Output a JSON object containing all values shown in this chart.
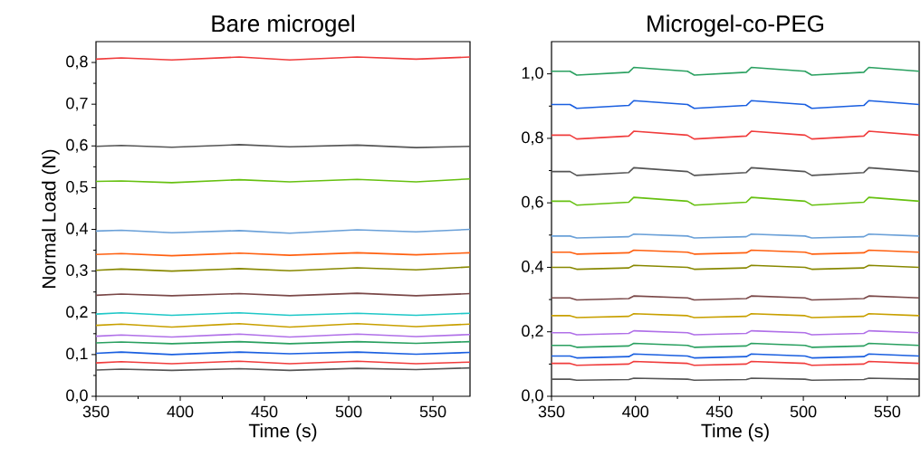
{
  "chart_data": [
    {
      "type": "line",
      "title": "Bare microgel",
      "xlabel": "Time (s)",
      "ylabel": "Normal Load (N)",
      "xlim": [
        350,
        572
      ],
      "ylim": [
        0,
        0.85
      ],
      "xticks": [
        350,
        400,
        450,
        500,
        550
      ],
      "yticks": [
        {
          "value": 0,
          "label": "0,0"
        },
        {
          "value": 0.1,
          "label": "0,1"
        },
        {
          "value": 0.2,
          "label": "0,2"
        },
        {
          "value": 0.3,
          "label": "0,3"
        },
        {
          "value": 0.4,
          "label": "0,4"
        },
        {
          "value": 0.5,
          "label": "0,5"
        },
        {
          "value": 0.6,
          "label": "0,6"
        },
        {
          "value": 0.7,
          "label": "0,7"
        },
        {
          "value": 0.8,
          "label": "0,8"
        }
      ],
      "series": [
        {
          "color": "#555555",
          "x": [
            350,
            365,
            395,
            435,
            465,
            505,
            540,
            572
          ],
          "values": [
            0.063,
            0.065,
            0.062,
            0.066,
            0.062,
            0.067,
            0.064,
            0.068
          ]
        },
        {
          "color": "#f03c3c",
          "x": [
            350,
            365,
            395,
            435,
            465,
            505,
            540,
            572
          ],
          "values": [
            0.08,
            0.083,
            0.078,
            0.084,
            0.078,
            0.084,
            0.078,
            0.082
          ]
        },
        {
          "color": "#1a5fe0",
          "x": [
            350,
            365,
            395,
            435,
            465,
            505,
            540,
            572
          ],
          "values": [
            0.103,
            0.106,
            0.1,
            0.106,
            0.102,
            0.106,
            0.101,
            0.105
          ]
        },
        {
          "color": "#2aa060",
          "x": [
            350,
            365,
            395,
            435,
            465,
            505,
            540,
            572
          ],
          "values": [
            0.128,
            0.13,
            0.126,
            0.131,
            0.126,
            0.131,
            0.127,
            0.131
          ]
        },
        {
          "color": "#b070e8",
          "x": [
            350,
            365,
            395,
            435,
            465,
            505,
            540,
            572
          ],
          "values": [
            0.144,
            0.147,
            0.142,
            0.149,
            0.142,
            0.149,
            0.143,
            0.148
          ]
        },
        {
          "color": "#c8a000",
          "x": [
            350,
            365,
            395,
            435,
            465,
            505,
            540,
            572
          ],
          "values": [
            0.17,
            0.173,
            0.166,
            0.174,
            0.166,
            0.174,
            0.167,
            0.173
          ]
        },
        {
          "color": "#20c8c8",
          "x": [
            350,
            365,
            395,
            435,
            465,
            505,
            540,
            572
          ],
          "values": [
            0.197,
            0.2,
            0.194,
            0.2,
            0.194,
            0.199,
            0.194,
            0.199
          ]
        },
        {
          "color": "#7a4848",
          "x": [
            350,
            365,
            395,
            435,
            465,
            505,
            540,
            572
          ],
          "values": [
            0.242,
            0.245,
            0.241,
            0.246,
            0.241,
            0.247,
            0.241,
            0.246
          ]
        },
        {
          "color": "#888800",
          "x": [
            350,
            365,
            395,
            435,
            465,
            505,
            540,
            572
          ],
          "values": [
            0.302,
            0.305,
            0.3,
            0.306,
            0.301,
            0.308,
            0.303,
            0.31
          ]
        },
        {
          "color": "#ff6010",
          "x": [
            350,
            365,
            395,
            435,
            465,
            505,
            540,
            572
          ],
          "values": [
            0.34,
            0.342,
            0.337,
            0.343,
            0.338,
            0.344,
            0.339,
            0.344
          ]
        },
        {
          "color": "#6aa0d8",
          "x": [
            350,
            365,
            395,
            435,
            465,
            505,
            540,
            572
          ],
          "values": [
            0.396,
            0.398,
            0.392,
            0.397,
            0.391,
            0.399,
            0.394,
            0.4
          ]
        },
        {
          "color": "#66c010",
          "x": [
            350,
            365,
            395,
            435,
            465,
            505,
            540,
            572
          ],
          "values": [
            0.515,
            0.516,
            0.512,
            0.519,
            0.514,
            0.52,
            0.514,
            0.521
          ]
        },
        {
          "color": "#555555",
          "x": [
            350,
            365,
            395,
            435,
            465,
            505,
            540,
            572
          ],
          "values": [
            0.599,
            0.601,
            0.597,
            0.603,
            0.598,
            0.602,
            0.596,
            0.599
          ]
        },
        {
          "color": "#f03c3c",
          "x": [
            350,
            365,
            395,
            435,
            465,
            505,
            540,
            572
          ],
          "values": [
            0.808,
            0.811,
            0.806,
            0.813,
            0.806,
            0.813,
            0.808,
            0.813
          ]
        }
      ]
    },
    {
      "type": "line",
      "title": "Microgel-co-PEG",
      "xlabel": "Time (s)",
      "xlim": [
        350,
        569
      ],
      "ylim": [
        0,
        1.1
      ],
      "xticks": [
        350,
        400,
        450,
        500,
        550
      ],
      "yticks": [
        {
          "value": 0,
          "label": "0,0"
        },
        {
          "value": 0.2,
          "label": "0,2"
        },
        {
          "value": 0.4,
          "label": "0,4"
        },
        {
          "value": 0.6,
          "label": "0,6"
        },
        {
          "value": 0.8,
          "label": "0,8"
        },
        {
          "value": 1.0,
          "label": "1,0"
        }
      ],
      "series": [
        {
          "color": "#555555",
          "x": [
            350,
            361,
            365,
            396,
            399,
            431,
            435,
            466,
            469,
            501,
            505,
            536,
            539,
            569
          ],
          "values": [
            0.053,
            0.053,
            0.05,
            0.052,
            0.056,
            0.053,
            0.05,
            0.052,
            0.056,
            0.053,
            0.05,
            0.052,
            0.056,
            0.053
          ]
        },
        {
          "color": "#f03c3c",
          "x": [
            350,
            361,
            365,
            396,
            399,
            431,
            435,
            466,
            469,
            501,
            505,
            536,
            539,
            569
          ],
          "values": [
            0.102,
            0.102,
            0.096,
            0.1,
            0.108,
            0.102,
            0.096,
            0.1,
            0.108,
            0.102,
            0.096,
            0.1,
            0.108,
            0.102
          ]
        },
        {
          "color": "#1a5fe0",
          "x": [
            350,
            361,
            365,
            396,
            399,
            431,
            435,
            466,
            469,
            501,
            505,
            536,
            539,
            569
          ],
          "values": [
            0.125,
            0.125,
            0.119,
            0.123,
            0.131,
            0.125,
            0.119,
            0.123,
            0.131,
            0.125,
            0.119,
            0.123,
            0.131,
            0.125
          ]
        },
        {
          "color": "#2aa060",
          "x": [
            350,
            361,
            365,
            396,
            399,
            431,
            435,
            466,
            469,
            501,
            505,
            536,
            539,
            569
          ],
          "values": [
            0.158,
            0.158,
            0.152,
            0.156,
            0.164,
            0.158,
            0.152,
            0.156,
            0.164,
            0.158,
            0.152,
            0.156,
            0.164,
            0.158
          ]
        },
        {
          "color": "#b070e8",
          "x": [
            350,
            361,
            365,
            396,
            399,
            431,
            435,
            466,
            469,
            501,
            505,
            536,
            539,
            569
          ],
          "values": [
            0.197,
            0.197,
            0.191,
            0.195,
            0.203,
            0.197,
            0.191,
            0.195,
            0.203,
            0.197,
            0.191,
            0.195,
            0.203,
            0.197
          ]
        },
        {
          "color": "#c8a000",
          "x": [
            350,
            361,
            365,
            396,
            399,
            431,
            435,
            466,
            469,
            501,
            505,
            536,
            539,
            569
          ],
          "values": [
            0.25,
            0.25,
            0.244,
            0.248,
            0.256,
            0.25,
            0.244,
            0.248,
            0.256,
            0.25,
            0.244,
            0.248,
            0.256,
            0.25
          ]
        },
        {
          "color": "#7a4848",
          "x": [
            350,
            361,
            365,
            396,
            399,
            431,
            435,
            466,
            469,
            501,
            505,
            536,
            539,
            569
          ],
          "values": [
            0.305,
            0.305,
            0.299,
            0.303,
            0.311,
            0.305,
            0.299,
            0.303,
            0.311,
            0.305,
            0.299,
            0.303,
            0.311,
            0.305
          ]
        },
        {
          "color": "#888800",
          "x": [
            350,
            361,
            365,
            396,
            399,
            431,
            435,
            466,
            469,
            501,
            505,
            536,
            539,
            569
          ],
          "values": [
            0.4,
            0.4,
            0.394,
            0.398,
            0.406,
            0.4,
            0.394,
            0.398,
            0.406,
            0.4,
            0.394,
            0.398,
            0.406,
            0.4
          ]
        },
        {
          "color": "#ff6010",
          "x": [
            350,
            361,
            365,
            396,
            399,
            431,
            435,
            466,
            469,
            501,
            505,
            536,
            539,
            569
          ],
          "values": [
            0.447,
            0.447,
            0.441,
            0.445,
            0.453,
            0.447,
            0.441,
            0.445,
            0.453,
            0.447,
            0.441,
            0.445,
            0.453,
            0.447
          ]
        },
        {
          "color": "#6aa0d8",
          "x": [
            350,
            361,
            365,
            396,
            399,
            431,
            435,
            466,
            469,
            501,
            505,
            536,
            539,
            569
          ],
          "values": [
            0.497,
            0.497,
            0.491,
            0.495,
            0.503,
            0.497,
            0.491,
            0.495,
            0.503,
            0.497,
            0.491,
            0.495,
            0.503,
            0.497
          ]
        },
        {
          "color": "#66c010",
          "x": [
            350,
            361,
            365,
            396,
            399,
            431,
            435,
            466,
            469,
            501,
            505,
            536,
            539,
            569
          ],
          "values": [
            0.605,
            0.605,
            0.593,
            0.602,
            0.617,
            0.605,
            0.593,
            0.602,
            0.617,
            0.605,
            0.593,
            0.602,
            0.617,
            0.605
          ]
        },
        {
          "color": "#555555",
          "x": [
            350,
            361,
            365,
            396,
            399,
            431,
            435,
            466,
            469,
            501,
            505,
            536,
            539,
            569
          ],
          "values": [
            0.697,
            0.697,
            0.685,
            0.694,
            0.709,
            0.697,
            0.685,
            0.694,
            0.709,
            0.697,
            0.685,
            0.694,
            0.709,
            0.697
          ]
        },
        {
          "color": "#f03c3c",
          "x": [
            350,
            361,
            365,
            396,
            399,
            431,
            435,
            466,
            469,
            501,
            505,
            536,
            539,
            569
          ],
          "values": [
            0.81,
            0.81,
            0.798,
            0.807,
            0.822,
            0.81,
            0.798,
            0.807,
            0.822,
            0.81,
            0.798,
            0.807,
            0.822,
            0.81
          ]
        },
        {
          "color": "#1a5fe0",
          "x": [
            350,
            361,
            365,
            396,
            399,
            431,
            435,
            466,
            469,
            501,
            505,
            536,
            539,
            569
          ],
          "values": [
            0.905,
            0.905,
            0.893,
            0.902,
            0.917,
            0.905,
            0.893,
            0.902,
            0.917,
            0.905,
            0.893,
            0.902,
            0.917,
            0.905
          ]
        },
        {
          "color": "#2aa060",
          "x": [
            350,
            361,
            365,
            396,
            399,
            431,
            435,
            466,
            469,
            501,
            505,
            536,
            539,
            569
          ],
          "values": [
            1.008,
            1.008,
            0.996,
            1.005,
            1.02,
            1.008,
            0.996,
            1.005,
            1.02,
            1.008,
            0.996,
            1.005,
            1.02,
            1.008
          ]
        }
      ]
    }
  ]
}
